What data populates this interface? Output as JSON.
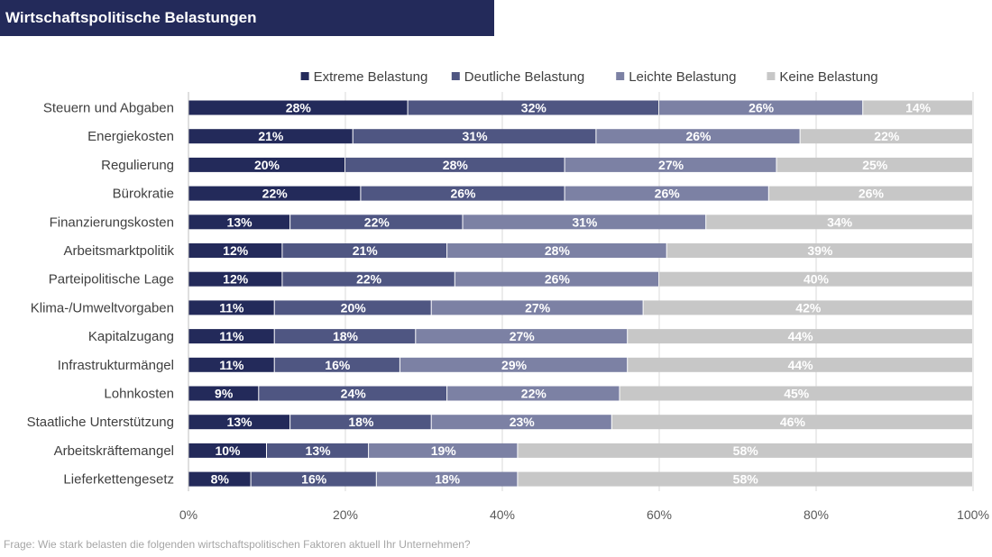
{
  "header": {
    "title": "Wirtschaftspolitische Belastungen"
  },
  "footnote": "Frage: Wie stark belasten die folgenden wirtschaftspolitischen Faktoren aktuell Ihr Unternehmen?",
  "chart_data": {
    "type": "bar",
    "orientation": "horizontal",
    "stacked": true,
    "title": "Wirtschaftspolitische Belastungen",
    "xlim": [
      0,
      100
    ],
    "x_ticks": [
      "0%",
      "20%",
      "40%",
      "60%",
      "80%",
      "100%"
    ],
    "grid": true,
    "legend_position": "top",
    "categories": [
      "Steuern und Abgaben",
      "Energiekosten",
      "Regulierung",
      "Bürokratie",
      "Finanzierungskosten",
      "Arbeitsmarktpolitik",
      "Parteipolitische Lage",
      "Klima-/Umweltvorgaben",
      "Kapitalzugang",
      "Infrastrukturmängel",
      "Lohnkosten",
      "Staatliche Unterstützung",
      "Arbeitskräftemangel",
      "Lieferkettengesetz"
    ],
    "series": [
      {
        "name": "Extreme Belastung",
        "color": "#232a5a",
        "values": [
          28,
          21,
          20,
          22,
          13,
          12,
          12,
          11,
          11,
          11,
          9,
          13,
          10,
          8
        ]
      },
      {
        "name": "Deutliche Belastung",
        "color": "#4f5682",
        "values": [
          32,
          31,
          28,
          26,
          22,
          21,
          22,
          20,
          18,
          16,
          24,
          18,
          13,
          16
        ]
      },
      {
        "name": "Leichte Belastung",
        "color": "#7c81a4",
        "values": [
          26,
          26,
          27,
          26,
          31,
          28,
          26,
          27,
          27,
          29,
          22,
          23,
          19,
          18
        ]
      },
      {
        "name": "Keine Belastung",
        "color": "#c7c7c7",
        "values": [
          14,
          22,
          25,
          26,
          34,
          39,
          40,
          42,
          44,
          44,
          45,
          46,
          58,
          58
        ]
      }
    ]
  }
}
